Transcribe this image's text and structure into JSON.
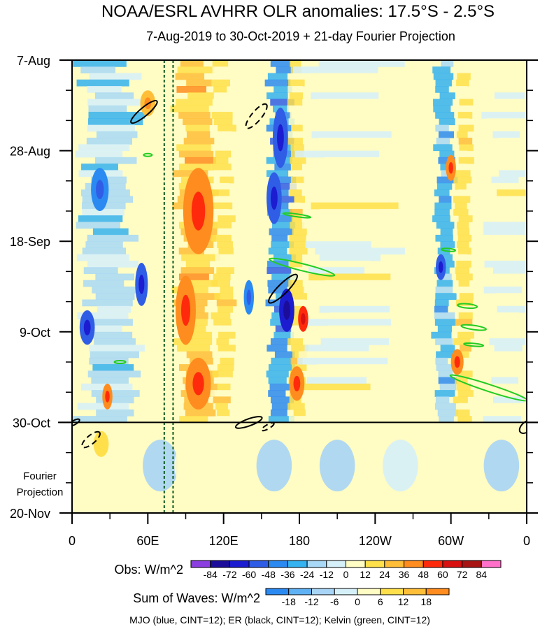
{
  "chart_data": {
    "type": "heatmap",
    "title": "NOAA/ESRL AVHRR OLR anomalies: 17.5°S - 2.5°S",
    "subtitle": "7-Aug-2019 to 30-Oct-2019 + 21-day Fourier Projection",
    "x_axis": {
      "tick_labels": [
        "0",
        "60E",
        "120E",
        "180",
        "120W",
        "60W",
        "0"
      ],
      "tick_lon_east": [
        0,
        60,
        120,
        180,
        240,
        300,
        360
      ],
      "range": [
        0,
        360
      ]
    },
    "y_axis": {
      "tick_labels": [
        "7-Aug",
        "28-Aug",
        "18-Sep",
        "9-Oct",
        "30-Oct",
        "20-Nov"
      ],
      "tick_days": [
        0,
        21,
        42,
        63,
        84,
        105
      ],
      "range_days": [
        0,
        105
      ],
      "observed_end_day": 84
    },
    "projection_label_line1": "Fourier",
    "projection_label_line2": "Projection",
    "guide_lines_lon_east": [
      73,
      80
    ],
    "obs_colorbar": {
      "label": "Obs: W/m^2",
      "levels": [
        "-84",
        "-72",
        "-60",
        "-48",
        "-36",
        "-24",
        "-12",
        "0",
        "12",
        "24",
        "36",
        "48",
        "60",
        "72",
        "84"
      ],
      "colors": [
        "#8b3fe0",
        "#1c0c9a",
        "#1c1cd0",
        "#2f5de6",
        "#2b8af2",
        "#35b2f0",
        "#a8d8f6",
        "#d6f0fa",
        "#fffcc4",
        "#ffe04a",
        "#ffbe38",
        "#ff8c1e",
        "#ff2a0c",
        "#d81010",
        "#a81414",
        "#ff70c8"
      ]
    },
    "waves_colorbar": {
      "label": "Sum of Waves: W/m^2",
      "levels": [
        "-18",
        "-12",
        "-6",
        "0",
        "6",
        "12",
        "18"
      ],
      "colors": [
        "#2b8af2",
        "#5fb2f4",
        "#a8d4f6",
        "#d6f0fa",
        "#fffcc4",
        "#ffe04a",
        "#ffbe38",
        "#ff8c1e"
      ]
    },
    "legend_text": "MJO (blue, CINT=12); ER (black, CINT=12); Kelvin (green, CINT=12)",
    "bands": [
      {
        "lon_center": 28,
        "width": 38,
        "level": -1
      },
      {
        "lon_center": 98,
        "width": 26,
        "level": 3
      },
      {
        "lon_center": 120,
        "width": 14,
        "level": 2
      },
      {
        "lon_center": 165,
        "width": 18,
        "level": -3
      },
      {
        "lon_center": 178,
        "width": 12,
        "level": 2
      },
      {
        "lon_center": 220,
        "width": 60,
        "level": 1
      },
      {
        "lon_center": 295,
        "width": 14,
        "level": -2
      },
      {
        "lon_center": 310,
        "width": 12,
        "level": 2
      },
      {
        "lon_center": 345,
        "width": 30,
        "level": 1
      }
    ],
    "blobs": [
      {
        "lon": 22,
        "day": 30,
        "rlon": 7,
        "rday": 5,
        "level": -3
      },
      {
        "lon": 12,
        "day": 62,
        "rlon": 6,
        "rday": 4,
        "level": -4
      },
      {
        "lon": 55,
        "day": 52,
        "rlon": 5,
        "rday": 5,
        "level": -4
      },
      {
        "lon": 28,
        "day": 78,
        "rlon": 4,
        "rday": 3,
        "level": 4
      },
      {
        "lon": 60,
        "day": 10,
        "rlon": 6,
        "rday": 3,
        "level": 3
      },
      {
        "lon": 100,
        "day": 35,
        "rlon": 12,
        "rday": 10,
        "level": 4
      },
      {
        "lon": 90,
        "day": 58,
        "rlon": 8,
        "rday": 8,
        "level": 4
      },
      {
        "lon": 100,
        "day": 75,
        "rlon": 10,
        "rday": 6,
        "level": 4
      },
      {
        "lon": 165,
        "day": 18,
        "rlon": 6,
        "rday": 7,
        "level": -4
      },
      {
        "lon": 160,
        "day": 32,
        "rlon": 6,
        "rday": 6,
        "level": -4
      },
      {
        "lon": 170,
        "day": 58,
        "rlon": 6,
        "rday": 5,
        "level": -5
      },
      {
        "lon": 183,
        "day": 60,
        "rlon": 4,
        "rday": 3,
        "level": 5
      },
      {
        "lon": 178,
        "day": 75,
        "rlon": 6,
        "rday": 4,
        "level": 4
      },
      {
        "lon": 140,
        "day": 55,
        "rlon": 4,
        "rday": 4,
        "level": -3
      },
      {
        "lon": 305,
        "day": 70,
        "rlon": 5,
        "rday": 3,
        "level": 4
      },
      {
        "lon": 292,
        "day": 48,
        "rlon": 4,
        "rday": 3,
        "level": -4
      },
      {
        "lon": 300,
        "day": 25,
        "rlon": 4,
        "rday": 3,
        "level": 4
      }
    ],
    "er_contours": [
      {
        "lon": 57,
        "day": 12,
        "rx": 24,
        "ry": 6,
        "rot": -40,
        "dashed": false
      },
      {
        "lon": 146,
        "day": 13,
        "rx": 22,
        "ry": 7,
        "rot": -50,
        "dashed": true
      },
      {
        "lon": 167,
        "day": 53,
        "rx": 28,
        "ry": 7,
        "rot": -45,
        "dashed": false
      },
      {
        "lon": 140,
        "day": 84,
        "rx": 20,
        "ry": 5,
        "rot": -20,
        "dashed": false
      },
      {
        "lon": 15,
        "day": 88,
        "rx": 16,
        "ry": 6,
        "rot": -40,
        "dashed": true
      },
      {
        "lon": 155,
        "day": 85,
        "rx": 10,
        "ry": 3,
        "rot": -30,
        "dashed": true
      },
      {
        "lon": 360,
        "day": 85,
        "rx": 12,
        "ry": 7,
        "rot": -40,
        "dashed": false
      },
      {
        "lon": 2,
        "day": 84,
        "rx": 8,
        "ry": 3,
        "rot": -30,
        "dashed": false
      }
    ],
    "kelvin_contours": [
      {
        "lon": 182,
        "day": 48,
        "rx": 48,
        "ry": 5,
        "rot": 14
      },
      {
        "lon": 178,
        "day": 36,
        "rx": 20,
        "ry": 2,
        "rot": 8
      },
      {
        "lon": 330,
        "day": 76,
        "rx": 58,
        "ry": 5,
        "rot": 18
      },
      {
        "lon": 313,
        "day": 57,
        "rx": 14,
        "ry": 3,
        "rot": 5
      },
      {
        "lon": 318,
        "day": 62,
        "rx": 18,
        "ry": 3,
        "rot": 8
      },
      {
        "lon": 318,
        "day": 66,
        "rx": 14,
        "ry": 2,
        "rot": 5
      },
      {
        "lon": 298,
        "day": 44,
        "rx": 10,
        "ry": 2,
        "rot": 5
      },
      {
        "lon": 60,
        "day": 22,
        "rx": 6,
        "ry": 2,
        "rot": 0
      },
      {
        "lon": 38,
        "day": 70,
        "rx": 8,
        "ry": 2,
        "rot": 0
      }
    ]
  }
}
